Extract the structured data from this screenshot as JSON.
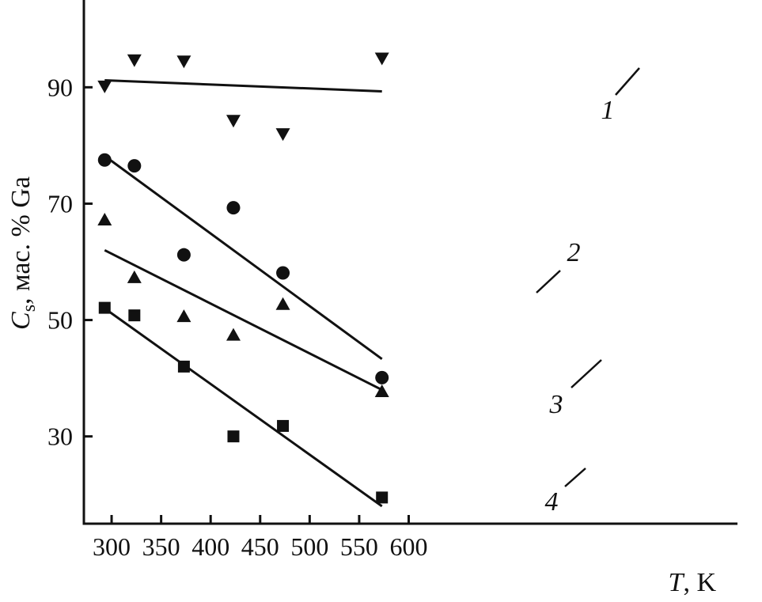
{
  "chart_data": {
    "type": "scatter",
    "title": "",
    "xlabel": {
      "var": "T",
      "unit": ", K"
    },
    "ylabel": {
      "var": "C",
      "sub": "s",
      "rest": ", мас. % Ga"
    },
    "xlim": [
      272,
      932
    ],
    "ylim": [
      15,
      105
    ],
    "xticks": [
      300,
      350,
      400,
      450,
      500,
      550,
      600
    ],
    "yticks": [
      30,
      50,
      70,
      90
    ],
    "grid": false,
    "legend": "none",
    "series": [
      {
        "label": "1",
        "marker": "triangle-down",
        "points": [
          [
            293,
            90.2
          ],
          [
            323,
            94.7
          ],
          [
            373,
            94.5
          ],
          [
            423,
            84.3
          ],
          [
            473,
            82.0
          ],
          [
            573,
            95.0
          ]
        ],
        "fit": [
          [
            293,
            91.2
          ],
          [
            573,
            89.3
          ]
        ]
      },
      {
        "label": "2",
        "marker": "circle",
        "points": [
          [
            293,
            77.5
          ],
          [
            323,
            76.5
          ],
          [
            373,
            61.2
          ],
          [
            423,
            69.3
          ],
          [
            473,
            58.1
          ],
          [
            573,
            40.1
          ]
        ],
        "fit": [
          [
            293,
            78.2
          ],
          [
            573,
            43.3
          ]
        ]
      },
      {
        "label": "3",
        "marker": "triangle-up",
        "points": [
          [
            293,
            67.2
          ],
          [
            323,
            57.3
          ],
          [
            373,
            50.6
          ],
          [
            423,
            47.4
          ],
          [
            473,
            52.7
          ],
          [
            573,
            37.7
          ]
        ],
        "fit": [
          [
            293,
            62.0
          ],
          [
            573,
            38.0
          ]
        ]
      },
      {
        "label": "4",
        "marker": "square",
        "points": [
          [
            293,
            52.1
          ],
          [
            323,
            50.8
          ],
          [
            373,
            42.0
          ],
          [
            423,
            30.0
          ],
          [
            473,
            31.8
          ],
          [
            573,
            19.5
          ]
        ],
        "fit": [
          [
            293,
            52.0
          ],
          [
            573,
            18.0
          ]
        ]
      }
    ]
  }
}
